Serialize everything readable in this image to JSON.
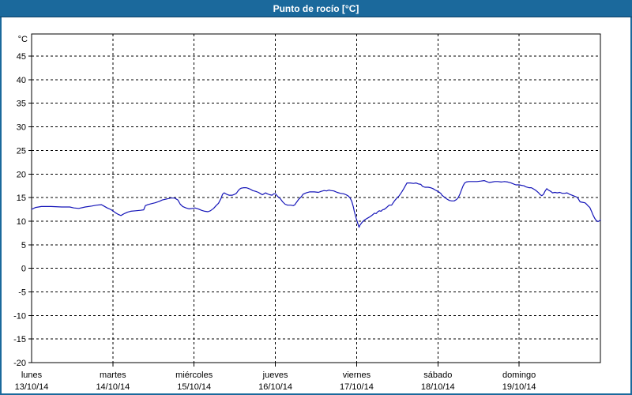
{
  "window": {
    "title": "Punto de rocío [°C]"
  },
  "colors": {
    "titlebar": "#1b699c",
    "titlebar_text": "#ffffff",
    "window_border": "#1b699c",
    "plot_background": "#ffffff",
    "grid": "#000000",
    "axis_text": "#000000",
    "line": "#1414b8"
  },
  "chart_data": {
    "type": "line",
    "title": "Punto de rocío [°C]",
    "unit_label": "°C",
    "ylim": [
      -20,
      49.7
    ],
    "y_ticks": [
      45,
      40,
      35,
      30,
      25,
      20,
      15,
      10,
      5,
      0,
      -5,
      -10,
      -15,
      -20
    ],
    "grid": true,
    "legend": "none",
    "x_categories": [
      {
        "label": "lunes",
        "date": "13/10/14"
      },
      {
        "label": "martes",
        "date": "14/10/14"
      },
      {
        "label": "miércoles",
        "date": "15/10/14"
      },
      {
        "label": "jueves",
        "date": "16/10/14"
      },
      {
        "label": "viernes",
        "date": "17/10/14"
      },
      {
        "label": "sábado",
        "date": "18/10/14"
      },
      {
        "label": "domingo",
        "date": "19/10/14"
      }
    ],
    "series": [
      {
        "name": "Punto de rocío",
        "color": "#1414b8",
        "x_unit": "days_from_start",
        "points": [
          [
            0.0,
            12.5
          ],
          [
            0.05,
            12.9
          ],
          [
            0.12,
            13.1
          ],
          [
            0.24,
            13.1
          ],
          [
            0.37,
            13.0
          ],
          [
            0.47,
            13.0
          ],
          [
            0.52,
            12.8
          ],
          [
            0.58,
            12.7
          ],
          [
            0.66,
            13.0
          ],
          [
            0.74,
            13.2
          ],
          [
            0.8,
            13.4
          ],
          [
            0.86,
            13.5
          ],
          [
            0.89,
            13.2
          ],
          [
            0.93,
            12.8
          ],
          [
            0.97,
            12.5
          ],
          [
            1.0,
            12.2
          ],
          [
            1.03,
            11.8
          ],
          [
            1.07,
            11.4
          ],
          [
            1.1,
            11.2
          ],
          [
            1.14,
            11.6
          ],
          [
            1.18,
            11.9
          ],
          [
            1.22,
            12.1
          ],
          [
            1.28,
            12.2
          ],
          [
            1.34,
            12.3
          ],
          [
            1.38,
            12.4
          ],
          [
            1.4,
            13.3
          ],
          [
            1.43,
            13.5
          ],
          [
            1.47,
            13.7
          ],
          [
            1.52,
            13.9
          ],
          [
            1.57,
            14.2
          ],
          [
            1.61,
            14.5
          ],
          [
            1.66,
            14.7
          ],
          [
            1.71,
            14.9
          ],
          [
            1.76,
            14.9
          ],
          [
            1.8,
            14.5
          ],
          [
            1.83,
            13.6
          ],
          [
            1.86,
            13.1
          ],
          [
            1.9,
            12.8
          ],
          [
            1.94,
            12.6
          ],
          [
            1.98,
            12.7
          ],
          [
            2.01,
            12.8
          ],
          [
            2.05,
            12.6
          ],
          [
            2.09,
            12.3
          ],
          [
            2.13,
            12.1
          ],
          [
            2.17,
            12.0
          ],
          [
            2.2,
            12.2
          ],
          [
            2.24,
            12.7
          ],
          [
            2.27,
            13.3
          ],
          [
            2.3,
            13.8
          ],
          [
            2.33,
            14.8
          ],
          [
            2.35,
            15.7
          ],
          [
            2.37,
            16.0
          ],
          [
            2.4,
            15.7
          ],
          [
            2.43,
            15.5
          ],
          [
            2.47,
            15.5
          ],
          [
            2.5,
            15.7
          ],
          [
            2.52,
            15.9
          ],
          [
            2.54,
            16.4
          ],
          [
            2.56,
            16.8
          ],
          [
            2.58,
            17.0
          ],
          [
            2.61,
            17.1
          ],
          [
            2.64,
            17.1
          ],
          [
            2.66,
            17.0
          ],
          [
            2.69,
            16.8
          ],
          [
            2.72,
            16.5
          ],
          [
            2.76,
            16.3
          ],
          [
            2.79,
            16.1
          ],
          [
            2.82,
            15.8
          ],
          [
            2.84,
            15.6
          ],
          [
            2.86,
            15.8
          ],
          [
            2.88,
            16.0
          ],
          [
            2.9,
            15.8
          ],
          [
            2.93,
            15.6
          ],
          [
            2.96,
            15.5
          ],
          [
            2.98,
            15.8
          ],
          [
            3.0,
            15.8
          ],
          [
            3.03,
            15.2
          ],
          [
            3.06,
            14.8
          ],
          [
            3.09,
            14.1
          ],
          [
            3.12,
            13.6
          ],
          [
            3.15,
            13.4
          ],
          [
            3.19,
            13.4
          ],
          [
            3.22,
            13.3
          ],
          [
            3.24,
            13.5
          ],
          [
            3.26,
            14.0
          ],
          [
            3.29,
            14.7
          ],
          [
            3.32,
            15.2
          ],
          [
            3.34,
            15.7
          ],
          [
            3.38,
            16.0
          ],
          [
            3.42,
            16.2
          ],
          [
            3.48,
            16.2
          ],
          [
            3.53,
            16.1
          ],
          [
            3.56,
            16.3
          ],
          [
            3.6,
            16.5
          ],
          [
            3.63,
            16.4
          ],
          [
            3.66,
            16.6
          ],
          [
            3.68,
            16.5
          ],
          [
            3.72,
            16.4
          ],
          [
            3.76,
            16.1
          ],
          [
            3.8,
            15.9
          ],
          [
            3.84,
            15.8
          ],
          [
            3.87,
            15.6
          ],
          [
            3.9,
            15.3
          ],
          [
            3.92,
            14.9
          ],
          [
            3.94,
            14.2
          ],
          [
            3.96,
            13.0
          ],
          [
            3.97,
            12.2
          ],
          [
            3.98,
            11.5
          ],
          [
            4.0,
            10.3
          ],
          [
            4.02,
            9.2
          ],
          [
            4.03,
            8.7
          ],
          [
            4.04,
            9.1
          ],
          [
            4.06,
            9.6
          ],
          [
            4.08,
            10.0
          ],
          [
            4.11,
            10.4
          ],
          [
            4.14,
            10.7
          ],
          [
            4.17,
            11.0
          ],
          [
            4.2,
            11.4
          ],
          [
            4.22,
            11.7
          ],
          [
            4.24,
            11.6
          ],
          [
            4.26,
            12.0
          ],
          [
            4.28,
            12.2
          ],
          [
            4.3,
            12.1
          ],
          [
            4.32,
            12.4
          ],
          [
            4.34,
            12.5
          ],
          [
            4.37,
            12.9
          ],
          [
            4.4,
            13.4
          ],
          [
            4.43,
            13.4
          ],
          [
            4.45,
            13.9
          ],
          [
            4.47,
            14.4
          ],
          [
            4.5,
            15.0
          ],
          [
            4.52,
            15.3
          ],
          [
            4.54,
            15.8
          ],
          [
            4.56,
            16.3
          ],
          [
            4.58,
            16.9
          ],
          [
            4.6,
            17.5
          ],
          [
            4.62,
            18.1
          ],
          [
            4.66,
            18.1
          ],
          [
            4.7,
            18.0
          ],
          [
            4.73,
            18.1
          ],
          [
            4.76,
            17.9
          ],
          [
            4.79,
            17.8
          ],
          [
            4.81,
            17.4
          ],
          [
            4.84,
            17.2
          ],
          [
            4.88,
            17.2
          ],
          [
            4.91,
            17.1
          ],
          [
            4.94,
            16.9
          ],
          [
            4.97,
            16.6
          ],
          [
            5.0,
            16.3
          ],
          [
            5.02,
            16.1
          ],
          [
            5.04,
            15.8
          ],
          [
            5.05,
            15.5
          ],
          [
            5.08,
            15.1
          ],
          [
            5.11,
            14.7
          ],
          [
            5.14,
            14.4
          ],
          [
            5.17,
            14.3
          ],
          [
            5.2,
            14.3
          ],
          [
            5.23,
            14.6
          ],
          [
            5.25,
            15.0
          ],
          [
            5.27,
            15.7
          ],
          [
            5.29,
            16.6
          ],
          [
            5.31,
            17.5
          ],
          [
            5.33,
            18.1
          ],
          [
            5.35,
            18.3
          ],
          [
            5.38,
            18.4
          ],
          [
            5.43,
            18.4
          ],
          [
            5.48,
            18.4
          ],
          [
            5.53,
            18.5
          ],
          [
            5.57,
            18.6
          ],
          [
            5.6,
            18.4
          ],
          [
            5.63,
            18.2
          ],
          [
            5.67,
            18.3
          ],
          [
            5.7,
            18.4
          ],
          [
            5.74,
            18.4
          ],
          [
            5.78,
            18.3
          ],
          [
            5.82,
            18.4
          ],
          [
            5.86,
            18.3
          ],
          [
            5.9,
            18.1
          ],
          [
            5.93,
            17.9
          ],
          [
            5.96,
            17.7
          ],
          [
            6.0,
            17.7
          ],
          [
            6.03,
            17.6
          ],
          [
            6.06,
            17.5
          ],
          [
            6.08,
            17.3
          ],
          [
            6.12,
            17.1
          ],
          [
            6.15,
            17.1
          ],
          [
            6.18,
            16.8
          ],
          [
            6.2,
            16.6
          ],
          [
            6.22,
            16.3
          ],
          [
            6.24,
            16.0
          ],
          [
            6.26,
            15.6
          ],
          [
            6.28,
            15.4
          ],
          [
            6.3,
            15.7
          ],
          [
            6.32,
            16.4
          ],
          [
            6.34,
            16.9
          ],
          [
            6.36,
            16.6
          ],
          [
            6.39,
            16.3
          ],
          [
            6.41,
            16.0
          ],
          [
            6.44,
            16.1
          ],
          [
            6.47,
            16.0
          ],
          [
            6.5,
            16.1
          ],
          [
            6.53,
            15.9
          ],
          [
            6.56,
            15.9
          ],
          [
            6.59,
            16.0
          ],
          [
            6.62,
            15.7
          ],
          [
            6.65,
            15.5
          ],
          [
            6.68,
            15.3
          ],
          [
            6.71,
            15.1
          ],
          [
            6.73,
            14.7
          ],
          [
            6.75,
            14.1
          ],
          [
            6.78,
            14.0
          ],
          [
            6.81,
            13.9
          ],
          [
            6.83,
            13.6
          ],
          [
            6.85,
            13.2
          ],
          [
            6.87,
            12.9
          ],
          [
            6.89,
            12.1
          ],
          [
            6.91,
            11.3
          ],
          [
            6.93,
            10.6
          ],
          [
            6.95,
            10.1
          ],
          [
            6.97,
            9.9
          ],
          [
            6.99,
            10.1
          ],
          [
            7.0,
            10.3
          ]
        ]
      }
    ]
  }
}
